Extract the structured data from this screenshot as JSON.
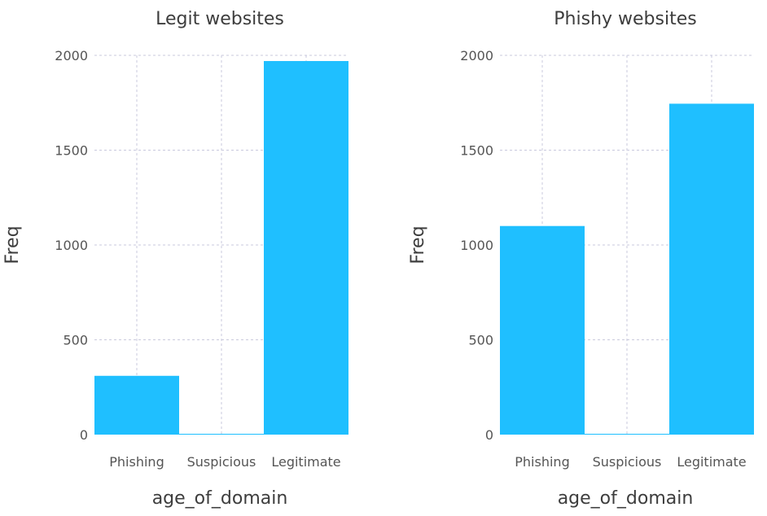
{
  "chart_data": [
    {
      "type": "bar",
      "title": "Legit websites",
      "xlabel": "age_of_domain",
      "ylabel": "Freq",
      "categories": [
        "Phishing",
        "Suspicious",
        "Legitimate"
      ],
      "values": [
        310,
        0,
        1970
      ],
      "ylim": [
        0,
        2000
      ],
      "yticks": [
        0,
        500,
        1000,
        1500,
        2000
      ],
      "grid": true,
      "color": "#1fbfff"
    },
    {
      "type": "bar",
      "title": "Phishy websites",
      "xlabel": "age_of_domain",
      "ylabel": "Freq",
      "categories": [
        "Phishing",
        "Suspicious",
        "Legitimate"
      ],
      "values": [
        1100,
        0,
        1745
      ],
      "ylim": [
        0,
        2000
      ],
      "yticks": [
        0,
        500,
        1000,
        1500,
        2000
      ],
      "grid": true,
      "color": "#1fbfff"
    }
  ]
}
